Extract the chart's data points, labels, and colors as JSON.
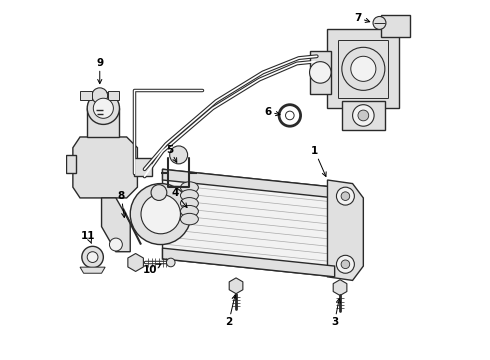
{
  "bg_color": "#ffffff",
  "line_color": "#2a2a2a",
  "fill_light": "#f2f2f2",
  "fill_mid": "#e0e0e0",
  "fill_dark": "#c8c8c8",
  "figsize": [
    4.9,
    3.6
  ],
  "dpi": 100,
  "labels": {
    "1": [
      0.695,
      0.44,
      0.66,
      0.48
    ],
    "2": [
      0.475,
      0.895,
      0.475,
      0.82
    ],
    "3": [
      0.77,
      0.895,
      0.77,
      0.82
    ],
    "4": [
      0.305,
      0.555,
      0.345,
      0.6
    ],
    "5": [
      0.295,
      0.435,
      0.33,
      0.48
    ],
    "6": [
      0.565,
      0.32,
      0.61,
      0.32
    ],
    "7": [
      0.82,
      0.055,
      0.855,
      0.055
    ],
    "8": [
      0.155,
      0.56,
      0.175,
      0.6
    ],
    "9": [
      0.105,
      0.185,
      0.105,
      0.245
    ],
    "10": [
      0.235,
      0.735,
      0.27,
      0.72
    ],
    "11": [
      0.08,
      0.66,
      0.08,
      0.7
    ]
  }
}
